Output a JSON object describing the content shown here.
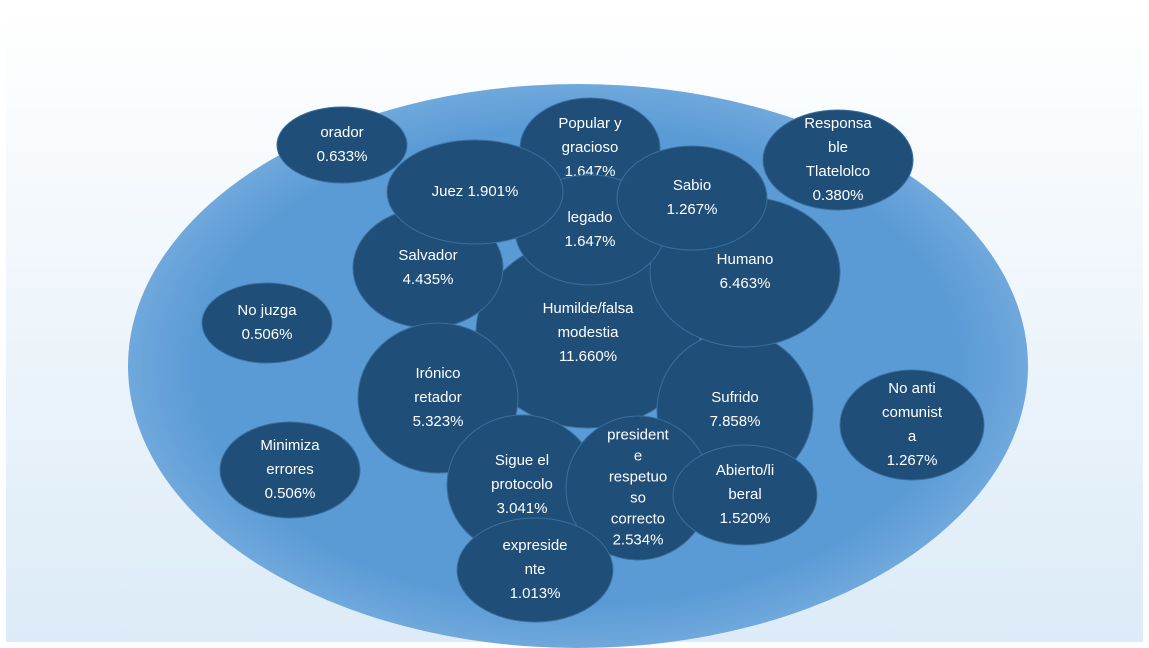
{
  "nodes": [
    {
      "lines": [
        "Humilde/falsa",
        "modestia",
        "11.660%"
      ]
    },
    {
      "lines": [
        "Sufrido",
        "7.858%"
      ]
    },
    {
      "lines": [
        "Humano",
        "6.463%"
      ]
    },
    {
      "lines": [
        "Salvador",
        "4.435%"
      ]
    },
    {
      "lines": [
        "Irónico",
        "retador",
        "5.323%"
      ]
    },
    {
      "lines": [
        "Popular y",
        "gracioso",
        "1.647%"
      ]
    },
    {
      "lines": [
        "legado",
        "1.647%"
      ]
    },
    {
      "lines": [
        "Juez 1.901%"
      ]
    },
    {
      "lines": [
        "Sabio",
        "1.267%"
      ]
    },
    {
      "lines": [
        "Sigue el",
        "protocolo",
        "3.041%"
      ]
    },
    {
      "lines": [
        "president",
        "e",
        "respetuo",
        "so",
        "correcto",
        "2.534%"
      ]
    },
    {
      "lines": [
        "Abierto/li",
        "beral",
        "1.520%"
      ]
    },
    {
      "lines": [
        "expreside",
        "nte",
        "1.013%"
      ]
    },
    {
      "lines": [
        "orador",
        "0.633%"
      ]
    },
    {
      "lines": [
        "Responsa",
        "ble",
        "Tlatelolco",
        "0.380%"
      ]
    },
    {
      "lines": [
        "No juzga",
        "0.506%"
      ]
    },
    {
      "lines": [
        "No anti",
        "comunist",
        "a",
        "1.267%"
      ]
    },
    {
      "lines": [
        "Minimiza",
        "errores",
        "0.506%"
      ]
    }
  ]
}
